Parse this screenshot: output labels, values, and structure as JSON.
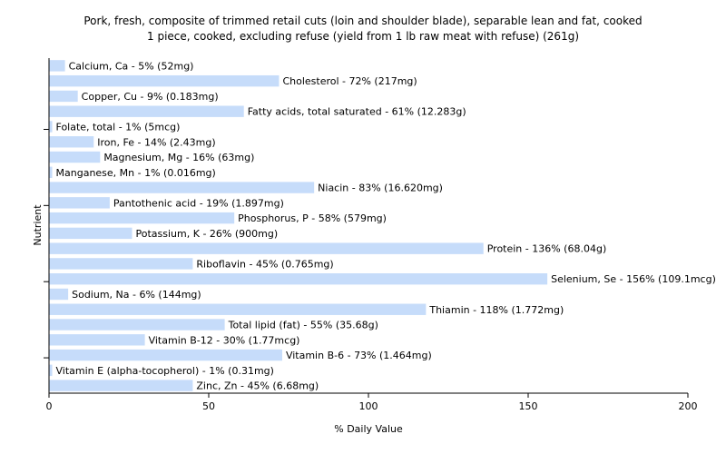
{
  "chart_data": {
    "type": "bar",
    "orientation": "horizontal",
    "title": "Pork, fresh, composite of trimmed retail cuts (loin and shoulder blade), separable lean and fat, cooked",
    "subtitle": "1 piece, cooked, excluding refuse (yield from 1 lb raw meat with refuse) (261g)",
    "xlabel": "% Daily Value",
    "ylabel": "Nutrient",
    "xlim": [
      0,
      200
    ],
    "xticks": [
      0,
      50,
      100,
      150,
      200
    ],
    "grid": false,
    "bar_color": "#c6dcfa",
    "categories": [
      "Calcium, Ca",
      "Cholesterol",
      "Copper, Cu",
      "Fatty acids, total saturated",
      "Folate, total",
      "Iron, Fe",
      "Magnesium, Mg",
      "Manganese, Mn",
      "Niacin",
      "Pantothenic acid",
      "Phosphorus, P",
      "Potassium, K",
      "Protein",
      "Riboflavin",
      "Selenium, Se",
      "Sodium, Na",
      "Thiamin",
      "Total lipid (fat)",
      "Vitamin B-12",
      "Vitamin B-6",
      "Vitamin E (alpha-tocopherol)",
      "Zinc, Zn"
    ],
    "values": [
      5,
      72,
      9,
      61,
      1,
      14,
      16,
      1,
      83,
      19,
      58,
      26,
      136,
      45,
      156,
      6,
      118,
      55,
      30,
      73,
      1,
      45
    ],
    "labels": [
      "Calcium, Ca - 5% (52mg)",
      "Cholesterol - 72% (217mg)",
      "Copper, Cu - 9% (0.183mg)",
      "Fatty acids, total saturated - 61% (12.283g)",
      "Folate, total - 1% (5mcg)",
      "Iron, Fe - 14% (2.43mg)",
      "Magnesium, Mg - 16% (63mg)",
      "Manganese, Mn - 1% (0.016mg)",
      "Niacin - 83% (16.620mg)",
      "Pantothenic acid - 19% (1.897mg)",
      "Phosphorus, P - 58% (579mg)",
      "Potassium, K - 26% (900mg)",
      "Protein - 136% (68.04g)",
      "Riboflavin - 45% (0.765mg)",
      "Selenium, Se - 156% (109.1mcg)",
      "Sodium, Na - 6% (144mg)",
      "Thiamin - 118% (1.772mg)",
      "Total lipid (fat) - 55% (35.68g)",
      "Vitamin B-12 - 30% (1.77mcg)",
      "Vitamin B-6 - 73% (1.464mg)",
      "Vitamin E (alpha-tocopherol) - 1% (0.31mg)",
      "Zinc, Zn - 45% (6.68mg)"
    ]
  }
}
